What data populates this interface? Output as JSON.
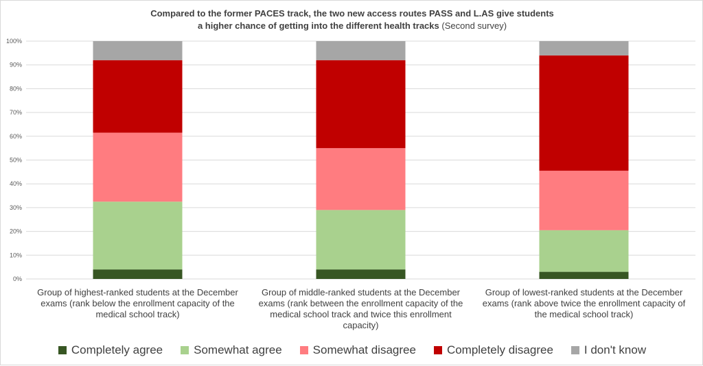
{
  "chart_data": {
    "type": "stacked_bar_100",
    "title_line1": "Compared to the former PACES track, the two new access routes PASS and L.AS give students",
    "title_line2_bold": "a higher chance of  getting into the different health tracks",
    "title_line2_suffix": "(Second survey)",
    "ylim": [
      0,
      100
    ],
    "y_ticks": [
      "0%",
      "10%",
      "20%",
      "30%",
      "40%",
      "50%",
      "60%",
      "70%",
      "80%",
      "90%",
      "100%"
    ],
    "grid": true,
    "legend_position": "bottom",
    "categories": [
      [
        "Group of highest-ranked students at the December",
        "exams (rank below the enrollment capacity of the",
        "medical school track)"
      ],
      [
        "Group of middle-ranked students at the December",
        "exams (rank between the enrollment capacity of the",
        "medical school track and twice this enrollment",
        "capacity)"
      ],
      [
        "Group of lowest-ranked students at the December",
        "exams (rank above twice the enrollment capacity of",
        "the medical school track)"
      ]
    ],
    "series": [
      {
        "name": "Completely agree",
        "color": "#375623",
        "values": [
          4,
          4,
          3
        ]
      },
      {
        "name": "Somewhat agree",
        "color": "#a9d18e",
        "values": [
          28.5,
          25,
          17.5
        ]
      },
      {
        "name": "Somewhat disagree",
        "color": "#ff7c80",
        "values": [
          29,
          26,
          25
        ]
      },
      {
        "name": "Completely disagree",
        "color": "#c00000",
        "values": [
          30.5,
          37,
          48.5
        ]
      },
      {
        "name": "I don't know",
        "color": "#a6a6a6",
        "values": [
          8,
          8,
          6
        ]
      }
    ]
  }
}
